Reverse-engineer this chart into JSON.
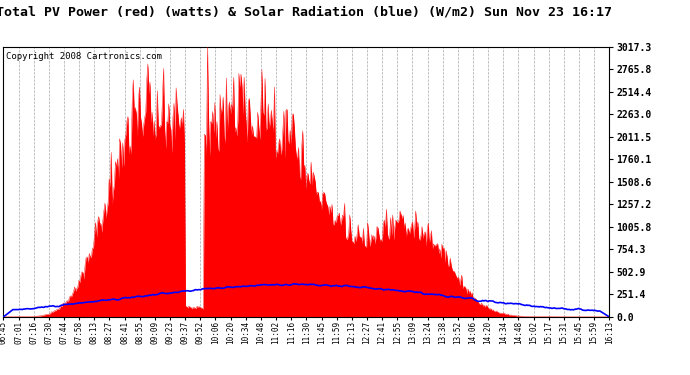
{
  "title": "Total PV Power (red) (watts) & Solar Radiation (blue) (W/m2) Sun Nov 23 16:17",
  "copyright": "Copyright 2008 Cartronics.com",
  "ymax": 3017.3,
  "yticks": [
    0.0,
    251.4,
    502.9,
    754.3,
    1005.8,
    1257.2,
    1508.6,
    1760.1,
    2011.5,
    2263.0,
    2514.4,
    2765.8,
    3017.3
  ],
  "ytick_labels": [
    "0.0",
    "251.4",
    "502.9",
    "754.3",
    "1005.8",
    "1257.2",
    "1508.6",
    "1760.1",
    "2011.5",
    "2263.0",
    "2514.4",
    "2765.8",
    "3017.3"
  ],
  "x_labels": [
    "06:45",
    "07:01",
    "07:16",
    "07:30",
    "07:44",
    "07:58",
    "08:13",
    "08:27",
    "08:41",
    "08:55",
    "09:09",
    "09:23",
    "09:37",
    "09:52",
    "10:06",
    "10:20",
    "10:34",
    "10:48",
    "11:02",
    "11:16",
    "11:30",
    "11:45",
    "11:59",
    "12:13",
    "12:27",
    "12:41",
    "12:55",
    "13:09",
    "13:24",
    "13:38",
    "13:52",
    "14:06",
    "14:20",
    "14:34",
    "14:48",
    "15:02",
    "15:17",
    "15:31",
    "15:45",
    "15:59",
    "16:13"
  ],
  "pv_color": "#FF0000",
  "solar_color": "#0000FF",
  "bg_color": "#FFFFFF",
  "plot_bg": "#FFFFFF",
  "grid_color": "#AAAAAA",
  "title_fontsize": 9.5,
  "copyright_fontsize": 6.5
}
